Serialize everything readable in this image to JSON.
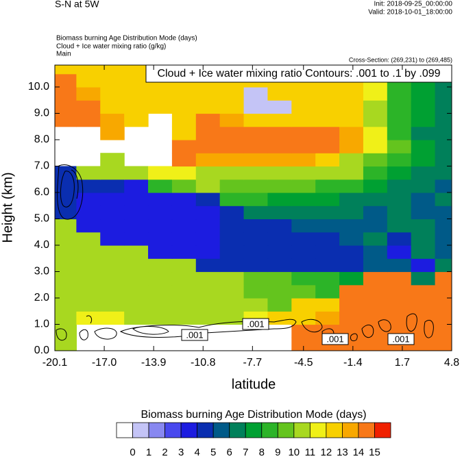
{
  "chart_data": {
    "type": "contourf",
    "title": "S-N at 5W",
    "init": "Init: 2018-09-25_00:00:00",
    "valid": "Valid: 2018-10-01_18:00:00",
    "fields": [
      "Biomass burning Age Distribution Mode   (days)",
      "Cloud + Ice water mixing ratio   (g/kg)"
    ],
    "main": "Main",
    "cross_section": "Cross-Section: (269,231) to (269,485)",
    "contour_title": "Cloud + Ice water mixing ratio Contours: .001 to .1 by .099",
    "xlabel": "latitude",
    "ylabel": "Height (km)",
    "xlim": [
      -20.1,
      4.8
    ],
    "ylim": [
      0,
      10.83
    ],
    "xticks": [
      -20.1,
      {
        "value": -17,
        "label": "-17.0"
      },
      -13.9,
      -10.8,
      -7.7,
      -4.5,
      -1.4,
      1.7,
      4.8
    ],
    "yticks": [
      {
        "value": 0,
        "label": "0.0"
      },
      {
        "value": 1,
        "label": "1.0"
      },
      {
        "value": 2,
        "label": "2.0"
      },
      {
        "value": 3,
        "label": "3.0"
      },
      {
        "value": 4,
        "label": "4.0"
      },
      {
        "value": 5,
        "label": "5.0"
      },
      {
        "value": 6,
        "label": "6.0"
      },
      {
        "value": 7,
        "label": "7.0"
      },
      {
        "value": 8,
        "label": "8.0"
      },
      {
        "value": 9,
        "label": "9.0"
      },
      {
        "value": 10,
        "label": "10.0"
      }
    ],
    "x": [
      -19.5,
      -18,
      -16.5,
      -15,
      -13.5,
      -12,
      -10.5,
      -9,
      -7.5,
      -6,
      -4.5,
      -3,
      -1.5,
      0,
      1.5,
      3,
      4.5
    ],
    "y": [
      0.25,
      0.75,
      1.25,
      1.75,
      2.25,
      2.75,
      3.25,
      3.75,
      4.25,
      4.75,
      5.25,
      5.75,
      6.25,
      6.75,
      7.25,
      7.75,
      8.25,
      8.75,
      9.25,
      9.75,
      10.25,
      10.75
    ],
    "z": [
      [
        10,
        null,
        null,
        null,
        null,
        null,
        null,
        null,
        null,
        null,
        14,
        14,
        14,
        14,
        14,
        14,
        14
      ],
      [
        10,
        null,
        null,
        null,
        null,
        null,
        null,
        null,
        null,
        null,
        14,
        14,
        14,
        14,
        14,
        14,
        14
      ],
      [
        10,
        11,
        11,
        10,
        10,
        10,
        10,
        10,
        11,
        12,
        12,
        13,
        14,
        14,
        14,
        14,
        14
      ],
      [
        10,
        10,
        10,
        10,
        10,
        10,
        10,
        10,
        10,
        9,
        12,
        12,
        14,
        14,
        14,
        14,
        14
      ],
      [
        10,
        10,
        10,
        10,
        10,
        10,
        10,
        10,
        9,
        9,
        9,
        8,
        14,
        14,
        14,
        14,
        14
      ],
      [
        10,
        10,
        10,
        10,
        10,
        10,
        10,
        10,
        9,
        9,
        8,
        8,
        7,
        14,
        14,
        6,
        14
      ],
      [
        10,
        10,
        10,
        10,
        10,
        10,
        4,
        4,
        4,
        4,
        4,
        4,
        4,
        5,
        5,
        3,
        6
      ],
      [
        10,
        10,
        10,
        10,
        3,
        3,
        3,
        4,
        4,
        4,
        4,
        4,
        4,
        5,
        3,
        6,
        5
      ],
      [
        10,
        10,
        3,
        3,
        3,
        3,
        3,
        4,
        4,
        4,
        4,
        4,
        5,
        6,
        4,
        6,
        5
      ],
      [
        10,
        3,
        3,
        3,
        3,
        3,
        3,
        4,
        4,
        4,
        5,
        5,
        5,
        5,
        6,
        6,
        5
      ],
      [
        4,
        3,
        3,
        3,
        3,
        3,
        3,
        4,
        6,
        6,
        6,
        6,
        6,
        5,
        6,
        5,
        5
      ],
      [
        4,
        3,
        3,
        3,
        3,
        3,
        4,
        8,
        8,
        7,
        7,
        7,
        6,
        6,
        6,
        5,
        6
      ],
      [
        4,
        4,
        4,
        3,
        8,
        9,
        10,
        9,
        9,
        9,
        9,
        8,
        8,
        7,
        6,
        6,
        5
      ],
      [
        4,
        10,
        10,
        10,
        11,
        11,
        10,
        10,
        10,
        10,
        10,
        10,
        10,
        8,
        7,
        6,
        6
      ],
      [
        null,
        null,
        10,
        null,
        null,
        14,
        13,
        13,
        13,
        13,
        13,
        12,
        10,
        9,
        8,
        7,
        6
      ],
      [
        null,
        null,
        null,
        null,
        null,
        14,
        14,
        14,
        14,
        14,
        14,
        14,
        13,
        11,
        9,
        7,
        6
      ],
      [
        null,
        null,
        13,
        null,
        null,
        12,
        14,
        14,
        14,
        14,
        14,
        14,
        13,
        11,
        8,
        6,
        6
      ],
      [
        14,
        14,
        13,
        12,
        null,
        12,
        14,
        13,
        12,
        12,
        12,
        12,
        12,
        10,
        8,
        7,
        6
      ],
      [
        14,
        14,
        12,
        12,
        12,
        12,
        12,
        12,
        0,
        0,
        12,
        12,
        12,
        10,
        8,
        7,
        6
      ],
      [
        14,
        13,
        12,
        12,
        12,
        12,
        12,
        12,
        0,
        12,
        12,
        12,
        12,
        11,
        8,
        7,
        6
      ],
      [
        14,
        12,
        12,
        12,
        12,
        12,
        12,
        12,
        12,
        12,
        12,
        12,
        12,
        11,
        8,
        7,
        6
      ],
      [
        12,
        12,
        12,
        12,
        12,
        12,
        12,
        12,
        12,
        12,
        12,
        12,
        12,
        12,
        9,
        7,
        7
      ]
    ],
    "colorbar": {
      "title": "Biomass burning Age Distribution Mode  (days)",
      "levels": [
        0,
        1,
        2,
        3,
        4,
        5,
        6,
        7,
        8,
        9,
        10,
        11,
        12,
        13,
        14,
        15
      ],
      "colors": [
        "#ffffff",
        "#c4c4f6",
        "#8888f0",
        "#4848ee",
        "#1c1ce0",
        "#0a2eb0",
        "#005a88",
        "#00805a",
        "#00a032",
        "#2cb428",
        "#64c41e",
        "#a8d820",
        "#f0f018",
        "#f8d000",
        "#f8a800",
        "#f87818",
        "#f02000"
      ]
    },
    "contour_labels": [
      {
        "value": 0.001,
        "label": ".001"
      },
      {
        "value": 0.001,
        "label": ".001"
      },
      {
        "value": 0.001,
        "label": ".001"
      },
      {
        "value": 0.001,
        "label": ".001"
      }
    ]
  }
}
